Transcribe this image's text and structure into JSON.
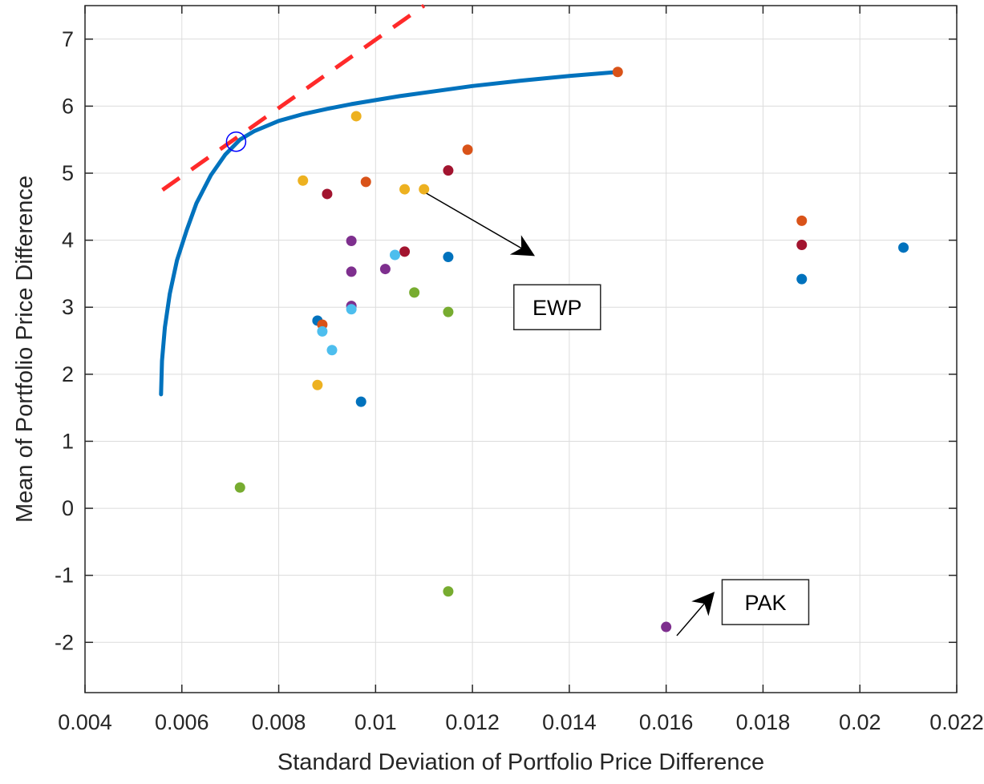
{
  "chart_data": {
    "type": "scatter",
    "title": "",
    "xlabel": "Standard Deviation of Portfolio Price Difference",
    "ylabel": "Mean of Portfolio Price Difference",
    "xlim": [
      0.004,
      0.022
    ],
    "ylim": [
      -2.75,
      7.5
    ],
    "grid": true,
    "xticks": [
      0.004,
      0.006,
      0.008,
      0.01,
      0.012,
      0.014,
      0.016,
      0.018,
      0.02,
      0.022
    ],
    "xtick_labels": [
      "0.004",
      "0.006",
      "0.008",
      "0.01",
      "0.012",
      "0.014",
      "0.016",
      "0.018",
      "0.02",
      "0.022"
    ],
    "yticks": [
      -2,
      -1,
      0,
      1,
      2,
      3,
      4,
      5,
      6,
      7
    ],
    "ytick_labels": [
      "-2",
      "-1",
      "0",
      "1",
      "2",
      "3",
      "4",
      "5",
      "6",
      "7"
    ],
    "frontier": {
      "name": "efficient frontier",
      "color": "#0072BD",
      "x": [
        0.00557,
        0.00559,
        0.00565,
        0.00575,
        0.0059,
        0.0061,
        0.0063,
        0.0066,
        0.0069,
        0.0072,
        0.0075,
        0.008,
        0.0085,
        0.009,
        0.0095,
        0.01,
        0.0105,
        0.011,
        0.012,
        0.013,
        0.014,
        0.015
      ],
      "y": [
        1.7,
        2.2,
        2.7,
        3.2,
        3.7,
        4.15,
        4.55,
        4.97,
        5.28,
        5.5,
        5.63,
        5.78,
        5.88,
        5.96,
        6.03,
        6.09,
        6.15,
        6.2,
        6.3,
        6.38,
        6.45,
        6.51
      ]
    },
    "tangent_line": {
      "name": "capital market line",
      "color": "#FF2A2A",
      "x": [
        0.0056,
        0.011
      ],
      "y": [
        4.75,
        7.5
      ]
    },
    "tangency_point": {
      "x": 0.00712,
      "y": 5.47,
      "color": "#0000FF"
    },
    "points": [
      {
        "x": 0.015,
        "y": 6.51,
        "color": "#D95319"
      },
      {
        "x": 0.0096,
        "y": 5.85,
        "color": "#EDB120"
      },
      {
        "x": 0.0119,
        "y": 5.35,
        "color": "#D95319"
      },
      {
        "x": 0.0115,
        "y": 5.04,
        "color": "#A2142F"
      },
      {
        "x": 0.0085,
        "y": 4.89,
        "color": "#EDB120"
      },
      {
        "x": 0.0098,
        "y": 4.87,
        "color": "#D95319"
      },
      {
        "x": 0.009,
        "y": 4.69,
        "color": "#A2142F"
      },
      {
        "x": 0.0106,
        "y": 4.76,
        "color": "#EDB120"
      },
      {
        "x": 0.011,
        "y": 4.76,
        "color": "#EDB120"
      },
      {
        "x": 0.0188,
        "y": 4.29,
        "color": "#D95319"
      },
      {
        "x": 0.0188,
        "y": 3.93,
        "color": "#A2142F"
      },
      {
        "x": 0.0209,
        "y": 3.89,
        "color": "#0072BD"
      },
      {
        "x": 0.0188,
        "y": 3.42,
        "color": "#0072BD"
      },
      {
        "x": 0.0095,
        "y": 3.99,
        "color": "#7E2F8E"
      },
      {
        "x": 0.0106,
        "y": 3.83,
        "color": "#A2142F"
      },
      {
        "x": 0.0104,
        "y": 3.78,
        "color": "#4DBEEE"
      },
      {
        "x": 0.0115,
        "y": 3.75,
        "color": "#0072BD"
      },
      {
        "x": 0.0102,
        "y": 3.57,
        "color": "#7E2F8E"
      },
      {
        "x": 0.0095,
        "y": 3.53,
        "color": "#7E2F8E"
      },
      {
        "x": 0.0108,
        "y": 3.22,
        "color": "#77AC30"
      },
      {
        "x": 0.0095,
        "y": 3.02,
        "color": "#7E2F8E"
      },
      {
        "x": 0.0095,
        "y": 2.97,
        "color": "#4DBEEE"
      },
      {
        "x": 0.0115,
        "y": 2.93,
        "color": "#77AC30"
      },
      {
        "x": 0.0088,
        "y": 2.8,
        "color": "#0072BD"
      },
      {
        "x": 0.0089,
        "y": 2.74,
        "color": "#D95319"
      },
      {
        "x": 0.0089,
        "y": 2.64,
        "color": "#4DBEEE"
      },
      {
        "x": 0.0091,
        "y": 2.36,
        "color": "#4DBEEE"
      },
      {
        "x": 0.0088,
        "y": 1.84,
        "color": "#EDB120"
      },
      {
        "x": 0.0097,
        "y": 1.59,
        "color": "#0072BD"
      },
      {
        "x": 0.0072,
        "y": 0.31,
        "color": "#77AC30"
      },
      {
        "x": 0.0115,
        "y": -1.24,
        "color": "#77AC30"
      },
      {
        "x": 0.016,
        "y": -1.77,
        "color": "#7E2F8E"
      }
    ],
    "annotations": [
      {
        "text": "EWP",
        "box_x": 0.01375,
        "box_y": 3.0,
        "arrow_from": [
          0.01105,
          4.7
        ],
        "arrow_to": [
          0.01325,
          3.78
        ]
      },
      {
        "text": "PAK",
        "box_x": 0.01805,
        "box_y": -1.4,
        "arrow_from": [
          0.01622,
          -1.9
        ],
        "arrow_to": [
          0.01697,
          -1.27
        ]
      }
    ]
  }
}
